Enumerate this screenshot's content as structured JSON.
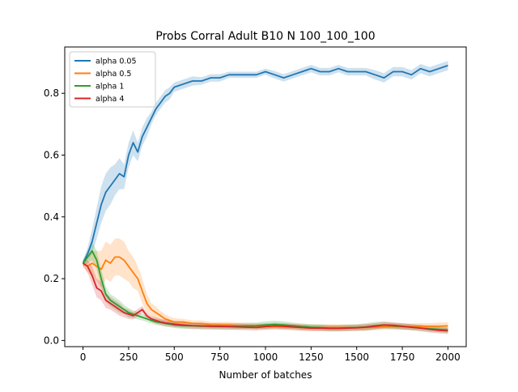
{
  "chart_data": {
    "type": "line",
    "title": "Probs Corral Adult B10 N 100_100_100",
    "xlabel": "Number of batches",
    "ylabel": "",
    "xlim": [
      -100,
      2100
    ],
    "ylim": [
      -0.02,
      0.95
    ],
    "xticks": [
      0,
      250,
      500,
      750,
      1000,
      1250,
      1500,
      1750,
      2000
    ],
    "yticks": [
      0.0,
      0.2,
      0.4,
      0.6,
      0.8
    ],
    "xtick_labels": [
      "0",
      "250",
      "500",
      "750",
      "1000",
      "1250",
      "1500",
      "1750",
      "2000"
    ],
    "ytick_labels": [
      "0.0",
      "0.2",
      "0.4",
      "0.6",
      "0.8"
    ],
    "grid": false,
    "legend_position": "upper-left",
    "series": [
      {
        "name": "alpha 0.05",
        "color": "#1f77b4",
        "x": [
          0,
          25,
          50,
          75,
          100,
          125,
          150,
          175,
          200,
          225,
          250,
          275,
          300,
          325,
          350,
          375,
          400,
          425,
          450,
          475,
          500,
          550,
          600,
          650,
          700,
          750,
          800,
          850,
          900,
          950,
          1000,
          1050,
          1100,
          1150,
          1200,
          1250,
          1300,
          1350,
          1400,
          1450,
          1500,
          1550,
          1600,
          1650,
          1700,
          1750,
          1800,
          1850,
          1900,
          1950,
          2000
        ],
        "y": [
          0.25,
          0.28,
          0.32,
          0.38,
          0.44,
          0.48,
          0.5,
          0.52,
          0.54,
          0.53,
          0.6,
          0.64,
          0.61,
          0.66,
          0.69,
          0.72,
          0.75,
          0.77,
          0.79,
          0.8,
          0.82,
          0.83,
          0.84,
          0.84,
          0.85,
          0.85,
          0.86,
          0.86,
          0.86,
          0.86,
          0.87,
          0.86,
          0.85,
          0.86,
          0.87,
          0.88,
          0.87,
          0.87,
          0.88,
          0.87,
          0.87,
          0.87,
          0.86,
          0.85,
          0.87,
          0.87,
          0.86,
          0.88,
          0.87,
          0.88,
          0.89
        ],
        "band": [
          0.01,
          0.02,
          0.04,
          0.05,
          0.06,
          0.06,
          0.06,
          0.05,
          0.05,
          0.04,
          0.04,
          0.04,
          0.03,
          0.03,
          0.03,
          0.02,
          0.02,
          0.02,
          0.02,
          0.02,
          0.015,
          0.015,
          0.015,
          0.012,
          0.012,
          0.012,
          0.01,
          0.01,
          0.01,
          0.01,
          0.01,
          0.012,
          0.012,
          0.012,
          0.012,
          0.012,
          0.012,
          0.012,
          0.012,
          0.012,
          0.012,
          0.012,
          0.015,
          0.015,
          0.015,
          0.015,
          0.015,
          0.015,
          0.015,
          0.015,
          0.015
        ]
      },
      {
        "name": "alpha 0.5",
        "color": "#ff7f0e",
        "x": [
          0,
          25,
          50,
          75,
          100,
          125,
          150,
          175,
          200,
          225,
          250,
          275,
          300,
          325,
          350,
          375,
          400,
          425,
          450,
          475,
          500,
          550,
          600,
          650,
          700,
          750,
          800,
          850,
          900,
          950,
          1000,
          1050,
          1100,
          1150,
          1200,
          1250,
          1300,
          1350,
          1400,
          1450,
          1500,
          1550,
          1600,
          1650,
          1700,
          1750,
          1800,
          1850,
          1900,
          1950,
          2000
        ],
        "y": [
          0.25,
          0.24,
          0.25,
          0.24,
          0.23,
          0.26,
          0.25,
          0.27,
          0.27,
          0.26,
          0.24,
          0.22,
          0.2,
          0.16,
          0.12,
          0.1,
          0.09,
          0.08,
          0.07,
          0.065,
          0.06,
          0.06,
          0.055,
          0.055,
          0.05,
          0.05,
          0.05,
          0.048,
          0.047,
          0.046,
          0.045,
          0.045,
          0.044,
          0.043,
          0.042,
          0.042,
          0.042,
          0.042,
          0.042,
          0.042,
          0.042,
          0.042,
          0.043,
          0.044,
          0.045,
          0.045,
          0.045,
          0.046,
          0.046,
          0.046,
          0.047
        ],
        "band": [
          0.01,
          0.02,
          0.04,
          0.05,
          0.06,
          0.06,
          0.06,
          0.06,
          0.06,
          0.06,
          0.05,
          0.05,
          0.04,
          0.04,
          0.03,
          0.02,
          0.02,
          0.015,
          0.015,
          0.012,
          0.012,
          0.01,
          0.01,
          0.01,
          0.01,
          0.01,
          0.01,
          0.01,
          0.01,
          0.01,
          0.01,
          0.01,
          0.01,
          0.01,
          0.01,
          0.01,
          0.01,
          0.01,
          0.01,
          0.01,
          0.01,
          0.01,
          0.01,
          0.01,
          0.01,
          0.01,
          0.01,
          0.01,
          0.01,
          0.012,
          0.012
        ]
      },
      {
        "name": "alpha 1",
        "color": "#2ca02c",
        "x": [
          0,
          25,
          50,
          75,
          100,
          125,
          150,
          175,
          200,
          225,
          250,
          275,
          300,
          325,
          350,
          375,
          400,
          425,
          450,
          475,
          500,
          550,
          600,
          650,
          700,
          750,
          800,
          850,
          900,
          950,
          1000,
          1050,
          1100,
          1150,
          1200,
          1250,
          1300,
          1350,
          1400,
          1450,
          1500,
          1550,
          1600,
          1650,
          1700,
          1750,
          1800,
          1850,
          1900,
          1950,
          2000
        ],
        "y": [
          0.25,
          0.27,
          0.29,
          0.26,
          0.2,
          0.15,
          0.13,
          0.12,
          0.11,
          0.1,
          0.09,
          0.085,
          0.08,
          0.075,
          0.07,
          0.065,
          0.06,
          0.058,
          0.055,
          0.053,
          0.05,
          0.048,
          0.047,
          0.046,
          0.046,
          0.045,
          0.045,
          0.046,
          0.047,
          0.048,
          0.05,
          0.052,
          0.05,
          0.048,
          0.045,
          0.043,
          0.042,
          0.04,
          0.04,
          0.041,
          0.042,
          0.044,
          0.048,
          0.05,
          0.047,
          0.045,
          0.043,
          0.04,
          0.038,
          0.036,
          0.034
        ],
        "band": [
          0.01,
          0.02,
          0.03,
          0.03,
          0.03,
          0.025,
          0.02,
          0.02,
          0.02,
          0.015,
          0.015,
          0.012,
          0.012,
          0.01,
          0.01,
          0.01,
          0.01,
          0.01,
          0.01,
          0.01,
          0.01,
          0.01,
          0.01,
          0.01,
          0.01,
          0.01,
          0.01,
          0.01,
          0.01,
          0.01,
          0.012,
          0.012,
          0.012,
          0.01,
          0.01,
          0.01,
          0.01,
          0.01,
          0.01,
          0.01,
          0.01,
          0.012,
          0.012,
          0.012,
          0.01,
          0.01,
          0.01,
          0.01,
          0.01,
          0.01,
          0.01
        ]
      },
      {
        "name": "alpha 4",
        "color": "#d62728",
        "x": [
          0,
          25,
          50,
          75,
          100,
          125,
          150,
          175,
          200,
          225,
          250,
          275,
          300,
          325,
          350,
          375,
          400,
          425,
          450,
          475,
          500,
          550,
          600,
          650,
          700,
          750,
          800,
          850,
          900,
          950,
          1000,
          1050,
          1100,
          1150,
          1200,
          1250,
          1300,
          1350,
          1400,
          1450,
          1500,
          1550,
          1600,
          1650,
          1700,
          1750,
          1800,
          1850,
          1900,
          1950,
          2000
        ],
        "y": [
          0.25,
          0.24,
          0.21,
          0.17,
          0.16,
          0.13,
          0.12,
          0.11,
          0.1,
          0.09,
          0.085,
          0.08,
          0.09,
          0.1,
          0.08,
          0.07,
          0.065,
          0.06,
          0.057,
          0.055,
          0.053,
          0.05,
          0.048,
          0.047,
          0.046,
          0.046,
          0.045,
          0.044,
          0.043,
          0.042,
          0.045,
          0.047,
          0.046,
          0.044,
          0.042,
          0.04,
          0.04,
          0.039,
          0.039,
          0.04,
          0.041,
          0.043,
          0.046,
          0.05,
          0.049,
          0.046,
          0.043,
          0.04,
          0.036,
          0.033,
          0.031
        ],
        "band": [
          0.01,
          0.02,
          0.03,
          0.03,
          0.03,
          0.025,
          0.02,
          0.02,
          0.02,
          0.015,
          0.015,
          0.012,
          0.012,
          0.012,
          0.01,
          0.01,
          0.01,
          0.01,
          0.01,
          0.01,
          0.01,
          0.01,
          0.01,
          0.01,
          0.01,
          0.01,
          0.01,
          0.01,
          0.01,
          0.01,
          0.01,
          0.01,
          0.01,
          0.01,
          0.01,
          0.01,
          0.01,
          0.01,
          0.01,
          0.01,
          0.01,
          0.01,
          0.01,
          0.01,
          0.01,
          0.01,
          0.01,
          0.01,
          0.01,
          0.01,
          0.01
        ]
      }
    ]
  }
}
